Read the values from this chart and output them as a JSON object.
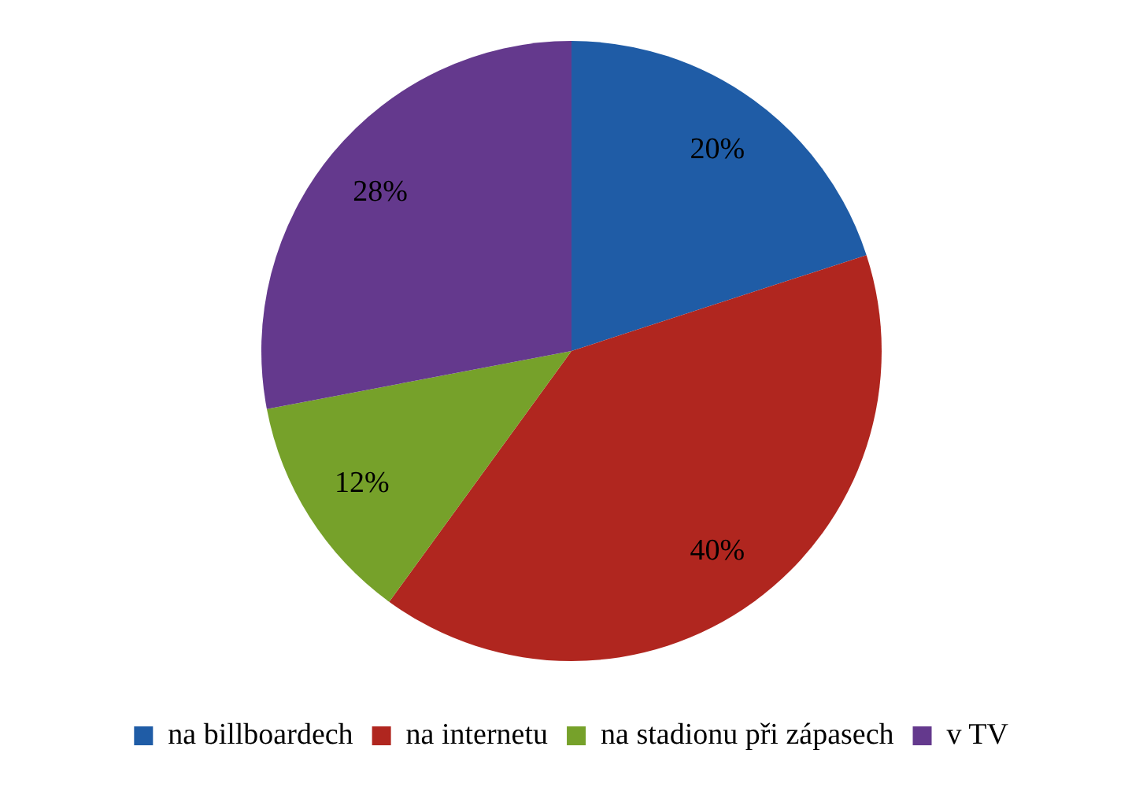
{
  "chart_data": {
    "type": "pie",
    "categories": [
      "na billboardech",
      "na internetu",
      "na stadionu při zápasech",
      "v TV"
    ],
    "values": [
      20,
      40,
      12,
      28
    ],
    "value_labels": [
      "20%",
      "40%",
      "12%",
      "28%"
    ],
    "colors": [
      "#1f5ca6",
      "#b0261f",
      "#76a12a",
      "#64398d"
    ],
    "legend": "bottom"
  }
}
